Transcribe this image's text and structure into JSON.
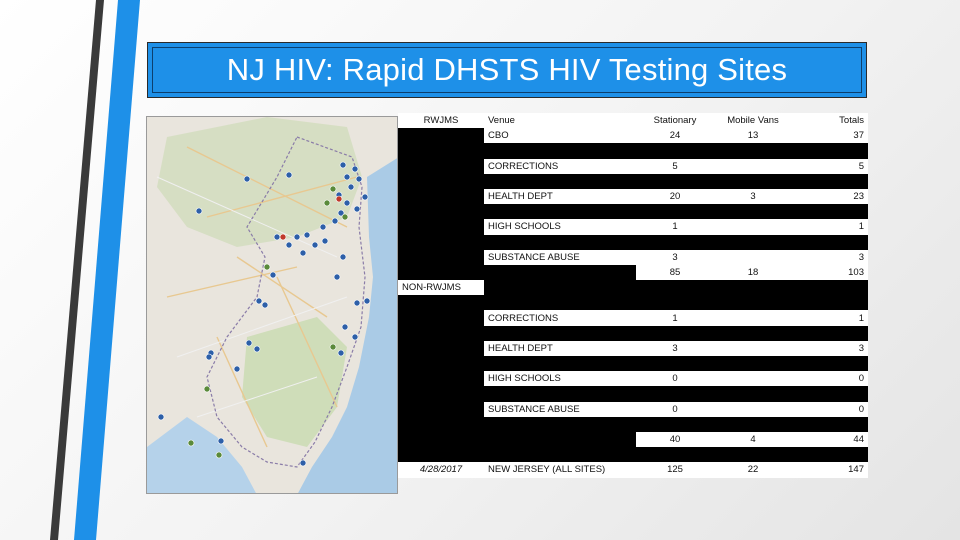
{
  "title": "NJ HIV: Rapid DHSTS HIV Testing Sites",
  "colors": {
    "title_bg": "#1e90e8",
    "bar_dark": "#3a3a3a",
    "bar_blue": "#1e90e8",
    "marker_blue": "#2d5fa8",
    "marker_green": "#5a8a3a",
    "marker_red": "#c0392b"
  },
  "table": {
    "header": {
      "group": "RWJMS",
      "venue": "Venue",
      "stationary": "Stationary",
      "mobile": "Mobile Vans",
      "totals": "Totals"
    },
    "rwjms_rows": [
      {
        "venue": "CBO",
        "stationary": "24",
        "mobile": "13",
        "totals": "37"
      },
      {
        "venue": "CORRECTIONS",
        "stationary": "5",
        "mobile": "",
        "totals": "5"
      },
      {
        "venue": "HEALTH DEPT",
        "stationary": "20",
        "mobile": "3",
        "totals": "23"
      },
      {
        "venue": "HIGH SCHOOLS",
        "stationary": "1",
        "mobile": "",
        "totals": "1"
      },
      {
        "venue": "SUBSTANCE ABUSE",
        "stationary": "3",
        "mobile": "",
        "totals": "3"
      }
    ],
    "rwjms_subtotal": {
      "stationary": "85",
      "mobile": "18",
      "totals": "103"
    },
    "non_group": "NON-RWJMS",
    "non_rows": [
      {
        "venue": "CORRECTIONS",
        "stationary": "1",
        "mobile": "",
        "totals": "1"
      },
      {
        "venue": "HEALTH DEPT",
        "stationary": "3",
        "mobile": "",
        "totals": "3"
      },
      {
        "venue": "HIGH SCHOOLS",
        "stationary": "0",
        "mobile": "",
        "totals": "0"
      },
      {
        "venue": "SUBSTANCE ABUSE",
        "stationary": "0",
        "mobile": "",
        "totals": "0"
      }
    ],
    "non_subtotal": {
      "stationary": "40",
      "mobile": "4",
      "totals": "44"
    },
    "footer": {
      "date": "4/28/2017",
      "venue": "NEW JERSEY (ALL SITES)",
      "stationary": "125",
      "mobile": "22",
      "totals": "147"
    }
  }
}
